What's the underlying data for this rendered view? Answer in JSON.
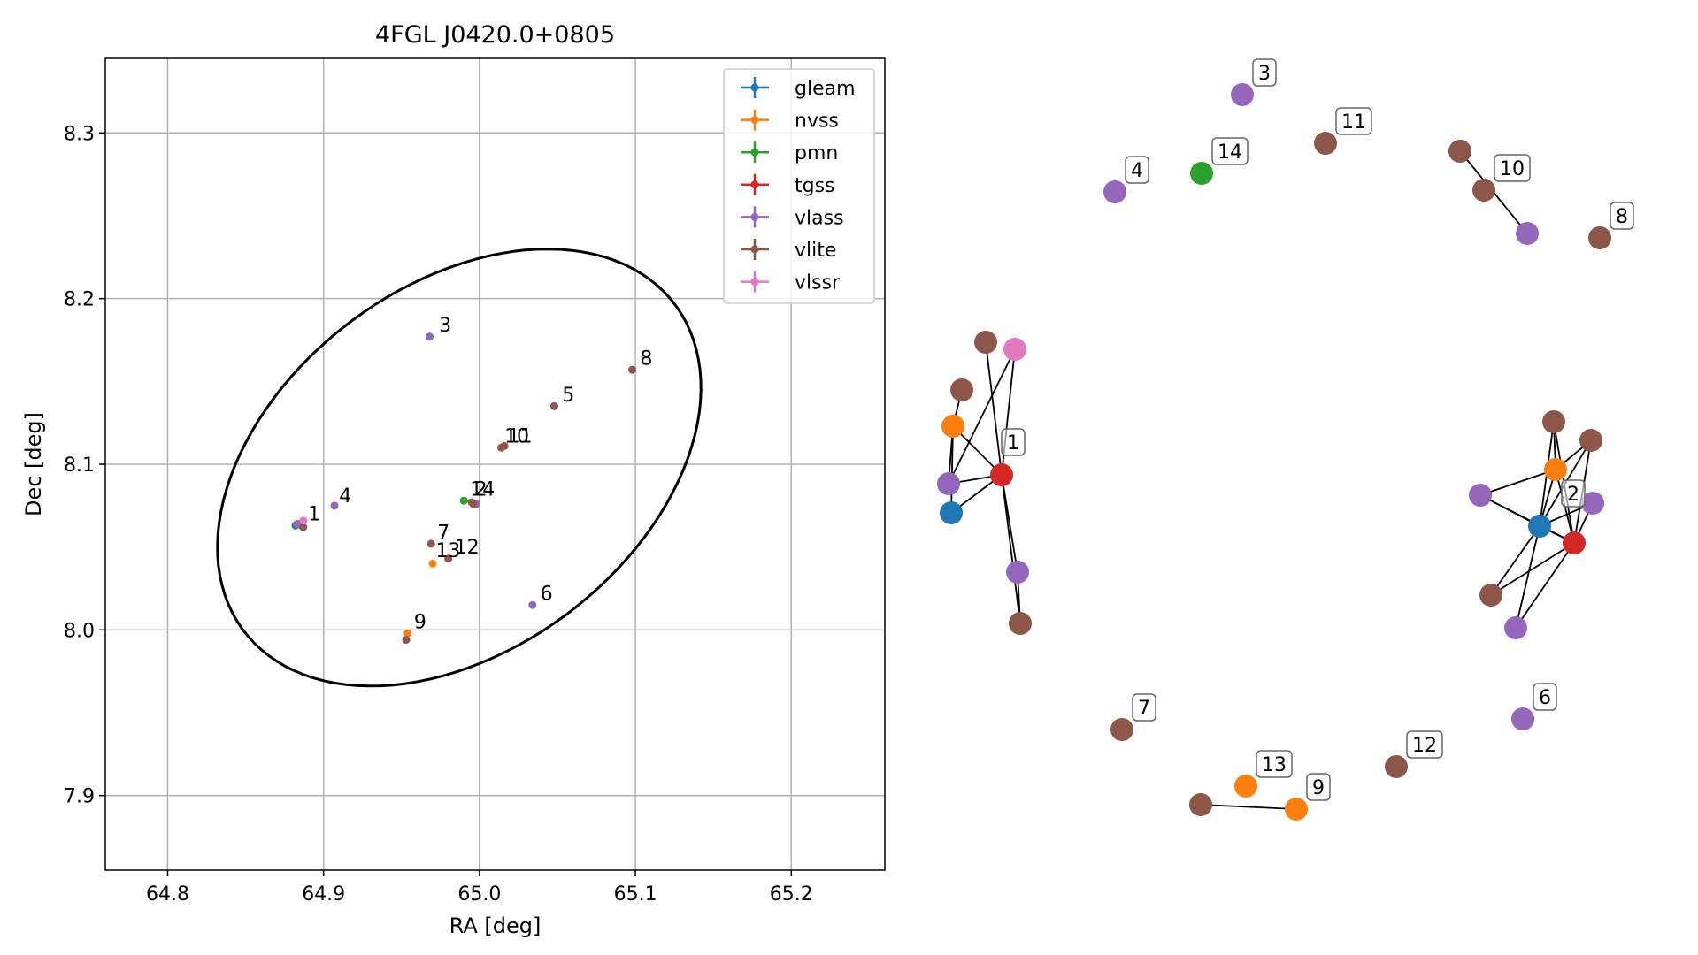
{
  "chart_data": [
    {
      "type": "scatter",
      "title": "4FGL J0420.0+0805",
      "xlabel": "RA [deg]",
      "ylabel": "Dec [deg]",
      "xlim": [
        64.76,
        65.26
      ],
      "ylim": [
        7.855,
        8.345
      ],
      "xticks": [
        "64.8",
        "64.9",
        "65.0",
        "65.1",
        "65.2"
      ],
      "yticks": [
        "7.9",
        "8.0",
        "8.1",
        "8.2",
        "8.3"
      ],
      "grid": true,
      "legend_position": "top-right",
      "ellipse": {
        "center": [
          64.987,
          8.098
        ],
        "semi_major": 0.17,
        "semi_minor": 0.112,
        "angle_deg": 33
      },
      "series": [
        {
          "name": "gleam",
          "color": "#1f77b4",
          "points": [
            [
              64.882,
              8.063
            ]
          ]
        },
        {
          "name": "nvss",
          "color": "#ff7f0e",
          "points": [
            [
              64.884,
              8.064
            ],
            [
              64.97,
              8.04
            ],
            [
              64.954,
              7.998
            ]
          ]
        },
        {
          "name": "pmn",
          "color": "#2ca02c",
          "points": [
            [
              64.99,
              8.078
            ]
          ]
        },
        {
          "name": "tgss",
          "color": "#d62728",
          "points": [
            [
              64.886,
              8.063
            ]
          ]
        },
        {
          "name": "vlass",
          "color": "#9467bd",
          "points": [
            [
              64.883,
              8.064
            ],
            [
              64.907,
              8.075
            ],
            [
              64.968,
              8.177
            ],
            [
              65.034,
              8.015
            ],
            [
              64.998,
              8.076
            ]
          ]
        },
        {
          "name": "vlite",
          "color": "#8c564b",
          "points": [
            [
              64.887,
              8.062
            ],
            [
              64.969,
              8.052
            ],
            [
              64.98,
              8.043
            ],
            [
              64.995,
              8.077
            ],
            [
              65.014,
              8.11
            ],
            [
              65.016,
              8.111
            ],
            [
              65.048,
              8.135
            ],
            [
              65.098,
              8.157
            ],
            [
              64.953,
              7.994
            ],
            [
              64.996,
              8.076
            ]
          ]
        },
        {
          "name": "vlssr",
          "color": "#e377c2",
          "points": [
            [
              64.887,
              8.066
            ]
          ]
        }
      ],
      "labels": [
        {
          "text": "1",
          "x": 64.89,
          "y": 8.066
        },
        {
          "text": "4",
          "x": 64.91,
          "y": 8.077
        },
        {
          "text": "3",
          "x": 64.974,
          "y": 8.18
        },
        {
          "text": "8",
          "x": 65.103,
          "y": 8.16
        },
        {
          "text": "5",
          "x": 65.053,
          "y": 8.138
        },
        {
          "text": "10",
          "x": 65.016,
          "y": 8.113
        },
        {
          "text": "11",
          "x": 65.018,
          "y": 8.113
        },
        {
          "text": "14",
          "x": 64.994,
          "y": 8.081
        },
        {
          "text": "2",
          "x": 64.997,
          "y": 8.081
        },
        {
          "text": "7",
          "x": 64.973,
          "y": 8.055
        },
        {
          "text": "13",
          "x": 64.972,
          "y": 8.044
        },
        {
          "text": "12",
          "x": 64.984,
          "y": 8.046
        },
        {
          "text": "6",
          "x": 65.039,
          "y": 8.018
        },
        {
          "text": "9",
          "x": 64.958,
          "y": 8.001
        }
      ]
    },
    {
      "type": "network",
      "nodes": [
        {
          "id": "n1",
          "series": "vlite",
          "color": "#8c564b",
          "label": "",
          "pos": [
            0.24,
            0.335
          ]
        },
        {
          "id": "n2",
          "series": "vlssr",
          "color": "#e377c2",
          "label": "",
          "pos": [
            0.29,
            0.342
          ]
        },
        {
          "id": "n3",
          "series": "vlite",
          "color": "#8c564b",
          "label": "",
          "pos": [
            0.11,
            0.397
          ]
        },
        {
          "id": "n4",
          "series": "nvss",
          "color": "#ff7f0e",
          "label": "",
          "pos": [
            0.08,
            0.438
          ]
        },
        {
          "id": "n5",
          "series": "tgss",
          "color": "#d62728",
          "label": "1",
          "pos": [
            0.35,
            0.48
          ]
        },
        {
          "id": "n6",
          "series": "vlass",
          "color": "#9467bd",
          "label": "",
          "pos": [
            0.07,
            0.505
          ]
        },
        {
          "id": "n7",
          "series": "gleam",
          "color": "#1f77b4",
          "label": "",
          "pos": [
            0.06,
            0.538
          ]
        },
        {
          "id": "n8",
          "series": "vlass",
          "color": "#9467bd",
          "label": "",
          "pos": [
            0.27,
            0.595
          ]
        },
        {
          "id": "n9",
          "series": "vlite",
          "color": "#8c564b",
          "label": "",
          "pos": [
            0.29,
            0.652
          ]
        },
        {
          "id": "n10",
          "series": "vlite",
          "color": "#8c564b",
          "label": "",
          "pos": [
            0.36,
            0.428
          ]
        },
        {
          "id": "n11",
          "series": "vlite",
          "color": "#8c564b",
          "label": "",
          "pos": [
            0.52,
            0.452
          ]
        },
        {
          "id": "n12",
          "series": "nvss",
          "color": "#ff7f0e",
          "label": "",
          "pos": [
            0.35,
            0.476
          ]
        },
        {
          "id": "n13",
          "series": "vlass",
          "color": "#9467bd",
          "label": "",
          "pos": [
            -0.45,
            0.506
          ]
        },
        {
          "id": "n14",
          "series": "vlass",
          "color": "#9467bd",
          "label": "",
          "pos": [
            0.52,
            0.528
          ]
        },
        {
          "id": "n15",
          "series": "gleam",
          "color": "#1f77b4",
          "label": "2",
          "pos": [
            0.08,
            0.55
          ]
        },
        {
          "id": "n16",
          "series": "tgss",
          "color": "#d62728",
          "label": "",
          "pos": [
            0.38,
            0.568
          ]
        },
        {
          "id": "n17",
          "series": "vlite",
          "color": "#8c564b",
          "label": "",
          "pos": [
            -0.38,
            0.619
          ]
        },
        {
          "id": "n18",
          "series": "vlass",
          "color": "#9467bd",
          "label": "",
          "pos": [
            -0.1,
            0.648
          ]
        },
        {
          "id": "n19",
          "series": "vlass",
          "color": "#9467bd",
          "label": "3",
          "pos": [
            0.0,
            0.0
          ]
        },
        {
          "id": "n20",
          "series": "vlass",
          "color": "#9467bd",
          "label": "4",
          "pos": [
            0.0,
            0.0
          ]
        },
        {
          "id": "n21",
          "series": "pmn",
          "color": "#2ca02c",
          "label": "14",
          "pos": [
            0.0,
            0.0
          ]
        },
        {
          "id": "n22",
          "series": "vlite",
          "color": "#8c564b",
          "label": "11",
          "pos": [
            0.0,
            0.0
          ]
        },
        {
          "id": "n23",
          "series": "vlite",
          "color": "#8c564b",
          "label": "",
          "pos": [
            0.0,
            0.0
          ]
        },
        {
          "id": "n24",
          "series": "vlite",
          "color": "#8c564b",
          "label": "10",
          "pos": [
            0.0,
            0.0
          ]
        },
        {
          "id": "n25",
          "series": "vlass",
          "color": "#9467bd",
          "label": "",
          "pos": [
            0.0,
            0.0
          ]
        },
        {
          "id": "n26",
          "series": "vlite",
          "color": "#8c564b",
          "label": "8",
          "pos": [
            0.0,
            0.0
          ]
        },
        {
          "id": "n27",
          "series": "vlass",
          "color": "#9467bd",
          "label": "6",
          "pos": [
            0.0,
            0.0
          ]
        },
        {
          "id": "n28",
          "series": "vlite",
          "color": "#8c564b",
          "label": "7",
          "pos": [
            0.0,
            0.0
          ]
        },
        {
          "id": "n29",
          "series": "vlite",
          "color": "#8c564b",
          "label": "12",
          "pos": [
            0.0,
            0.0
          ]
        },
        {
          "id": "n30",
          "series": "nvss",
          "color": "#ff7f0e",
          "label": "13",
          "pos": [
            0.0,
            0.0
          ]
        },
        {
          "id": "n31",
          "series": "vlite",
          "color": "#8c564b",
          "label": "",
          "pos": [
            0.0,
            0.0
          ]
        },
        {
          "id": "n32",
          "series": "nvss",
          "color": "#ff7f0e",
          "label": "9",
          "pos": [
            0.0,
            0.0
          ]
        }
      ],
      "edges": [
        [
          "n1",
          "n5"
        ],
        [
          "n2",
          "n5"
        ],
        [
          "n2",
          "n6"
        ],
        [
          "n3",
          "n4"
        ],
        [
          "n4",
          "n5"
        ],
        [
          "n4",
          "n7"
        ],
        [
          "n6",
          "n5"
        ],
        [
          "n7",
          "n5"
        ],
        [
          "n4",
          "n6"
        ],
        [
          "n5",
          "n8"
        ],
        [
          "n5",
          "n9"
        ],
        [
          "n8",
          "n9"
        ],
        [
          "n10",
          "n12"
        ],
        [
          "n10",
          "n15"
        ],
        [
          "n10",
          "n16"
        ],
        [
          "n11",
          "n12"
        ],
        [
          "n11",
          "n16"
        ],
        [
          "n11",
          "n15"
        ],
        [
          "n12",
          "n15"
        ],
        [
          "n12",
          "n16"
        ],
        [
          "n13",
          "n15"
        ],
        [
          "n13",
          "n16"
        ],
        [
          "n13",
          "n12"
        ],
        [
          "n14",
          "n15"
        ],
        [
          "n14",
          "n16"
        ],
        [
          "n15",
          "n16"
        ],
        [
          "n15",
          "n17"
        ],
        [
          "n15",
          "n18"
        ],
        [
          "n16",
          "n17"
        ],
        [
          "n16",
          "n18"
        ],
        [
          "n23",
          "n25"
        ],
        [
          "n31",
          "n32"
        ]
      ],
      "legend_entries": [
        "gleam",
        "nvss",
        "pmn",
        "tgss",
        "vlass",
        "vlite",
        "vlssr"
      ]
    }
  ]
}
